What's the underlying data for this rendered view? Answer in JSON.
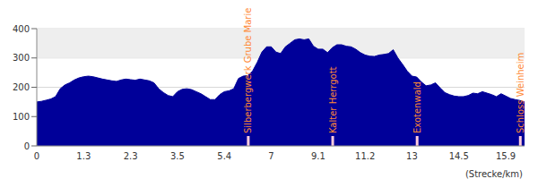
{
  "chart_data": {
    "type": "area",
    "x_label": "(Strecke/km)",
    "color": "#000099",
    "grid": true,
    "categories": [
      "0",
      null,
      null,
      null,
      null,
      null,
      null,
      null,
      null,
      null,
      "1.3",
      null,
      null,
      null,
      null,
      null,
      null,
      null,
      null,
      null,
      "2.3",
      null,
      null,
      null,
      null,
      null,
      null,
      null,
      null,
      null,
      "3.5",
      null,
      null,
      null,
      null,
      null,
      null,
      null,
      null,
      null,
      "5.4",
      null,
      null,
      null,
      null,
      null,
      null,
      null,
      null,
      null,
      "7",
      null,
      null,
      null,
      null,
      null,
      null,
      null,
      null,
      null,
      "9.1",
      null,
      null,
      null,
      null,
      null,
      null,
      null,
      null,
      null,
      "11.2",
      null,
      null,
      null,
      null,
      null,
      null,
      null,
      null,
      null,
      "13",
      null,
      null,
      null,
      null,
      null,
      null,
      null,
      null,
      null,
      "14.5",
      null,
      null,
      null,
      null,
      null,
      null,
      null,
      null,
      null,
      "15.9",
      null,
      null,
      null,
      null
    ],
    "values": [
      150,
      152,
      156,
      160,
      168,
      195,
      208,
      215,
      225,
      232,
      236,
      238,
      236,
      232,
      228,
      225,
      222,
      220,
      225,
      228,
      226,
      224,
      228,
      225,
      222,
      215,
      195,
      182,
      172,
      168,
      185,
      193,
      195,
      192,
      185,
      178,
      168,
      158,
      158,
      175,
      185,
      188,
      195,
      230,
      238,
      240,
      255,
      285,
      320,
      338,
      338,
      320,
      315,
      338,
      350,
      362,
      365,
      362,
      365,
      340,
      330,
      330,
      318,
      335,
      345,
      345,
      340,
      338,
      330,
      318,
      310,
      306,
      305,
      310,
      312,
      315,
      328,
      300,
      278,
      255,
      238,
      235,
      218,
      205,
      208,
      215,
      198,
      182,
      175,
      170,
      168,
      168,
      172,
      180,
      178,
      185,
      180,
      175,
      168,
      178,
      170,
      162,
      158,
      155,
      150
    ],
    "ylim": [
      0,
      400
    ],
    "yticks": [
      0,
      100,
      200,
      300,
      400
    ],
    "annotations": [
      {
        "text": "Silberbergwerk Grube Marie",
        "x": 45
      },
      {
        "text": "Kalter Herrgott",
        "x": 63
      },
      {
        "text": "Exotenwald",
        "x": 81
      },
      {
        "text": "Schloss Weinheim",
        "x": 103
      }
    ]
  }
}
